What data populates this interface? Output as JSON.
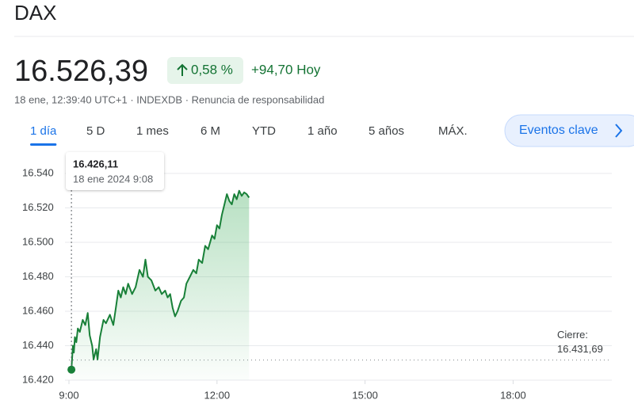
{
  "header": {
    "title": "DAX",
    "price": "16.526,39",
    "change_pct": "0,58 %",
    "change_abs": "+94,70 Hoy",
    "meta": "18 ene, 12:39:40 UTC+1 · INDEXDB · Renuncia de responsabilidad"
  },
  "tabs": [
    "1 día",
    "5 D",
    "1 mes",
    "6 M",
    "YTD",
    "1 año",
    "5 años",
    "MÁX."
  ],
  "button": "Eventos clave",
  "chart_data": {
    "type": "line",
    "color": "#188038",
    "x": [
      9.05,
      9.08,
      9.1,
      9.12,
      9.15,
      9.18,
      9.22,
      9.28,
      9.33,
      9.38,
      9.42,
      9.47,
      9.5,
      9.55,
      9.58,
      9.63,
      9.7,
      9.75,
      9.83,
      9.9,
      9.95,
      10.0,
      10.05,
      10.1,
      10.15,
      10.2,
      10.28,
      10.35,
      10.43,
      10.5,
      10.55,
      10.6,
      10.67,
      10.75,
      10.82,
      10.88,
      10.95,
      11.0,
      11.05,
      11.1,
      11.15,
      11.2,
      11.27,
      11.33,
      11.38,
      11.45,
      11.52,
      11.58,
      11.63,
      11.7,
      11.76,
      11.82,
      11.9,
      11.95,
      12.0,
      12.05,
      12.1,
      12.15,
      12.2,
      12.25,
      12.3,
      12.35,
      12.4,
      12.45,
      12.5,
      12.55,
      12.6,
      12.65
    ],
    "values": [
      16426.11,
      16440,
      16436,
      16445,
      16442,
      16450,
      16448,
      16455,
      16452,
      16459,
      16446,
      16440,
      16432,
      16438,
      16432,
      16445,
      16455,
      16453,
      16458,
      16452,
      16462,
      16472,
      16468,
      16474,
      16470,
      16476,
      16470,
      16474,
      16484,
      16480,
      16490,
      16480,
      16478,
      16472,
      16474,
      16470,
      16472,
      16468,
      16470,
      16462,
      16457,
      16460,
      16466,
      16468,
      16476,
      16480,
      16484,
      16482,
      16490,
      16488,
      16498,
      16496,
      16504,
      16502,
      16510,
      16508,
      16516,
      16522,
      16528,
      16524,
      16522,
      16528,
      16525,
      16530,
      16527,
      16529,
      16528,
      16526
    ],
    "xlim": [
      9,
      20
    ],
    "ylim": [
      16420,
      16540
    ],
    "xticks": [
      {
        "value": 9,
        "label": "9:00"
      },
      {
        "value": 12,
        "label": "12:00"
      },
      {
        "value": 15,
        "label": "15:00"
      },
      {
        "value": 18,
        "label": "18:00"
      }
    ],
    "yticks": [
      {
        "value": 16420,
        "label": "16.420"
      },
      {
        "value": 16440,
        "label": "16.440"
      },
      {
        "value": 16460,
        "label": "16.460"
      },
      {
        "value": 16480,
        "label": "16.480"
      },
      {
        "value": 16500,
        "label": "16.500"
      },
      {
        "value": 16520,
        "label": "16.520"
      },
      {
        "value": 16540,
        "label": "16.540"
      }
    ],
    "grid": true,
    "close_label": "Cierre:",
    "close_value": 16431.69,
    "close_value_label": "16.431,69",
    "tooltip": {
      "value": 16426.11,
      "value_label": "16.426,11",
      "date": "18 ene 2024 9:08"
    }
  }
}
